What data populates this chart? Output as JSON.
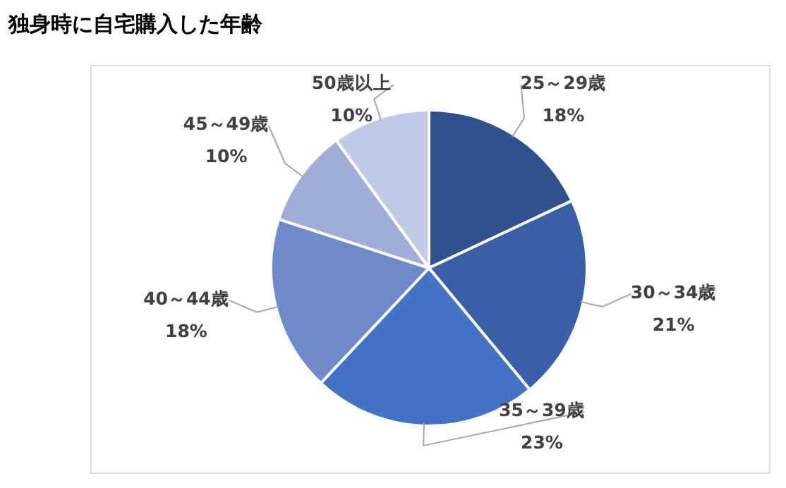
{
  "chart_data": {
    "type": "pie",
    "title": "独身時に自宅購入した年齢",
    "categories": [
      "25～29歳",
      "30～34歳",
      "35～39歳",
      "40～44歳",
      "45～49歳",
      "50歳以上"
    ],
    "values": [
      18,
      21,
      23,
      18,
      10,
      10
    ],
    "value_labels": [
      "18%",
      "21%",
      "23%",
      "18%",
      "10%",
      "10%"
    ],
    "colors": [
      "#2f528f",
      "#3a5fa8",
      "#4472c4",
      "#6e8acb",
      "#9fadd8",
      "#c0c9e5"
    ],
    "legend": false
  }
}
